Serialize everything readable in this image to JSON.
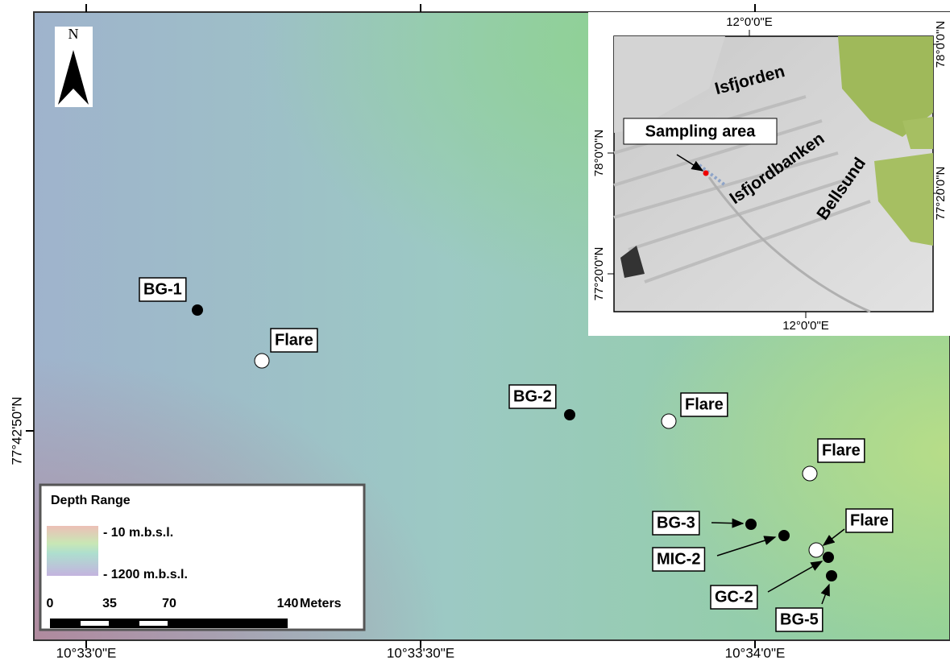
{
  "map": {
    "lon_labels": [
      "10°33'0\"E",
      "10°33'30\"E",
      "10°34'0\"E"
    ],
    "lat_label": "77°42'50\"N",
    "north_label": "N",
    "points": [
      {
        "label": "BG-1"
      },
      {
        "label": "Flare"
      },
      {
        "label": "BG-2"
      },
      {
        "label": "Flare"
      },
      {
        "label": "Flare"
      },
      {
        "label": "BG-3"
      },
      {
        "label": "MIC-2"
      },
      {
        "label": "Flare"
      },
      {
        "label": "GC-2"
      },
      {
        "label": "BG-5"
      }
    ],
    "legend": {
      "title": "Depth Range",
      "high": "- 10 m.b.s.l.",
      "low": "- 1200 m.b.s.l."
    },
    "scale_bar": {
      "ticks": [
        0,
        35,
        70,
        140
      ],
      "unit": "Meters"
    },
    "inset": {
      "top_lon": "12°0'0\"E",
      "bottom_lon": "12°0'0\"E",
      "left_lats": [
        "78°0'0\"N",
        "77°20'0\"N"
      ],
      "right_lats": [
        "78°0'0\"N",
        "77°20'0\"N"
      ],
      "places": [
        "Isfjorden",
        "Sampling area",
        "Isfjordbanken",
        "Bellsund"
      ]
    }
  }
}
